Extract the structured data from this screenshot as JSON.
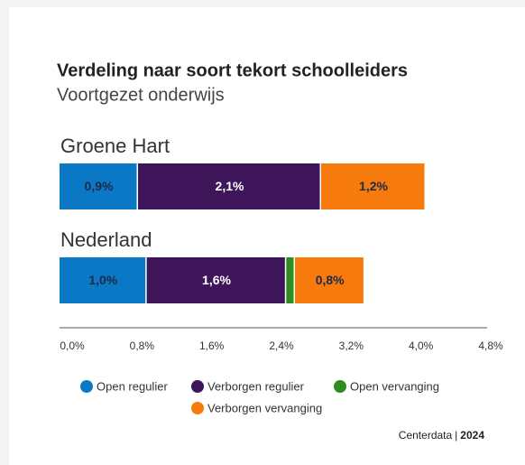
{
  "chart_data": {
    "type": "stacked-hbar",
    "title": "Verdeling naar soort tekort schoolleiders",
    "subtitle": "Voortgezet onderwijs",
    "categories": [
      "Groene Hart",
      "Nederland"
    ],
    "series": [
      {
        "name": "Open regulier",
        "color": "#0b78c6",
        "label_color": "#1c2a4a",
        "values": [
          0.9,
          1.0
        ],
        "value_labels": [
          "0,9%",
          "1,0%"
        ]
      },
      {
        "name": "Verborgen regulier",
        "color": "#3f155a",
        "label_color": "#ffffff",
        "values": [
          2.1,
          1.6
        ],
        "value_labels": [
          "2,1%",
          "1,6%"
        ]
      },
      {
        "name": "Open vervanging",
        "color": "#2f8c1f",
        "label_color": "#ffffff",
        "values": [
          0,
          0.1
        ],
        "value_labels": [
          null,
          null
        ]
      },
      {
        "name": "Verborgen vervanging",
        "color": "#f77b0c",
        "label_color": "#1c2a4a",
        "values": [
          1.2,
          0.8
        ],
        "value_labels": [
          "1,2%",
          "0,8%"
        ]
      }
    ],
    "xlim": [
      0,
      4.8
    ],
    "xticks": [
      {
        "value": 0,
        "label": "0,0%"
      },
      {
        "value": 0.8,
        "label": "0,8%"
      },
      {
        "value": 1.6,
        "label": "1,6%"
      },
      {
        "value": 2.4,
        "label": "2,4%"
      },
      {
        "value": 3.2,
        "label": "3,2%"
      },
      {
        "value": 4.0,
        "label": "4,0%"
      },
      {
        "value": 4.8,
        "label": "4,8%"
      }
    ],
    "source": "Centerdata",
    "separator": "|",
    "year": "2024"
  }
}
